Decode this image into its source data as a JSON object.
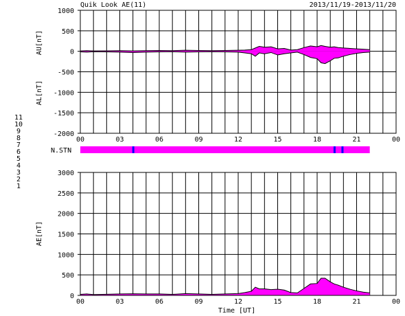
{
  "header": {
    "title": "Quik Look AE(11)",
    "date_range": "2013/11/19-2013/11/20"
  },
  "legend": {
    "items": [
      {
        "label": "11",
        "color": "#00ffff"
      },
      {
        "label": "10",
        "color": "#ff00ff"
      },
      {
        "label": "9",
        "color": "#0000ff"
      },
      {
        "label": "8",
        "color": "#ffff00"
      },
      {
        "label": "7",
        "color": "#00ff00"
      },
      {
        "label": "6",
        "color": "#ff0000"
      },
      {
        "label": "5",
        "color": "#d8d8d8"
      },
      {
        "label": "4",
        "color": "#a8a8a8"
      },
      {
        "label": "3",
        "color": "#00aaaa"
      },
      {
        "label": "2",
        "color": "#aa00aa"
      },
      {
        "label": "1",
        "color": "#0000aa"
      }
    ]
  },
  "colors": {
    "fill": "#ff00ff",
    "station_bar": "#ff00ff",
    "station_gap": "#0000ff",
    "axis": "#000000"
  },
  "chart_data": [
    {
      "type": "area",
      "ylabel_top": "AU[nT]",
      "ylabel_bottom": "AL[nT]",
      "ylim": [
        -2000,
        1000
      ],
      "yticks": [
        "1000",
        "500",
        "0",
        "-500",
        "-1000",
        "-1500",
        "-2000"
      ],
      "ytick_values": [
        1000,
        500,
        0,
        -500,
        -1000,
        -1500,
        -2000
      ],
      "xticks": [
        "00",
        "03",
        "06",
        "09",
        "12",
        "15",
        "18",
        "21",
        "00"
      ],
      "xlim": [
        0,
        24
      ],
      "grid": true,
      "au": {
        "x": [
          0,
          0.5,
          1,
          2,
          3,
          4,
          5,
          6,
          7,
          8,
          9,
          10,
          11,
          12,
          12.5,
          13,
          13.3,
          13.6,
          14,
          14.5,
          15,
          15.5,
          16,
          16.5,
          17,
          17.5,
          18,
          18.3,
          18.6,
          19,
          19.3,
          19.6,
          20,
          20.5,
          21,
          21.5,
          22
        ],
        "y": [
          10,
          15,
          10,
          12,
          15,
          10,
          15,
          20,
          15,
          25,
          20,
          15,
          20,
          25,
          30,
          40,
          80,
          120,
          100,
          110,
          60,
          70,
          30,
          40,
          90,
          130,
          110,
          140,
          120,
          100,
          110,
          90,
          80,
          70,
          60,
          50,
          40
        ]
      },
      "al": {
        "x": [
          0,
          0.5,
          1,
          2,
          3,
          4,
          5,
          6,
          7,
          8,
          9,
          10,
          11,
          12,
          12.5,
          13,
          13.3,
          13.6,
          14,
          14.5,
          15,
          15.5,
          16,
          16.5,
          17,
          17.5,
          18,
          18.3,
          18.6,
          19,
          19.3,
          19.6,
          20,
          20.5,
          21,
          21.5,
          22
        ],
        "y": [
          -15,
          -20,
          -10,
          -15,
          -20,
          -30,
          -20,
          -15,
          -10,
          -20,
          -15,
          -10,
          -15,
          -20,
          -40,
          -60,
          -120,
          -40,
          -60,
          -30,
          -90,
          -60,
          -40,
          -20,
          -80,
          -150,
          -180,
          -280,
          -300,
          -230,
          -170,
          -160,
          -120,
          -80,
          -50,
          -30,
          -20
        ]
      }
    },
    {
      "type": "bar",
      "label": "N.STN",
      "x_range": [
        0,
        22
      ],
      "drops": [
        4,
        19.3,
        19.9
      ]
    },
    {
      "type": "area",
      "ylabel": "AE[nT]",
      "xlabel": "Time [UT]",
      "ylim": [
        0,
        3000
      ],
      "yticks": [
        "3000",
        "2500",
        "2000",
        "1500",
        "1000",
        "500",
        "0"
      ],
      "ytick_values": [
        3000,
        2500,
        2000,
        1500,
        1000,
        500,
        0
      ],
      "xticks": [
        "00",
        "03",
        "06",
        "09",
        "12",
        "15",
        "18",
        "21",
        "00"
      ],
      "xlim": [
        0,
        24
      ],
      "grid": true,
      "x": [
        0,
        0.5,
        1,
        2,
        3,
        4,
        5,
        6,
        7,
        8,
        9,
        10,
        11,
        12,
        12.5,
        13,
        13.3,
        13.6,
        14,
        14.5,
        15,
        15.5,
        16,
        16.5,
        17,
        17.5,
        18,
        18.3,
        18.6,
        19,
        19.3,
        19.6,
        20,
        20.5,
        21,
        21.5,
        22
      ],
      "y": [
        25,
        35,
        20,
        27,
        35,
        40,
        35,
        35,
        25,
        45,
        35,
        25,
        35,
        45,
        70,
        100,
        200,
        160,
        160,
        140,
        150,
        130,
        70,
        60,
        170,
        280,
        290,
        420,
        420,
        330,
        280,
        250,
        200,
        150,
        110,
        80,
        60
      ]
    }
  ]
}
